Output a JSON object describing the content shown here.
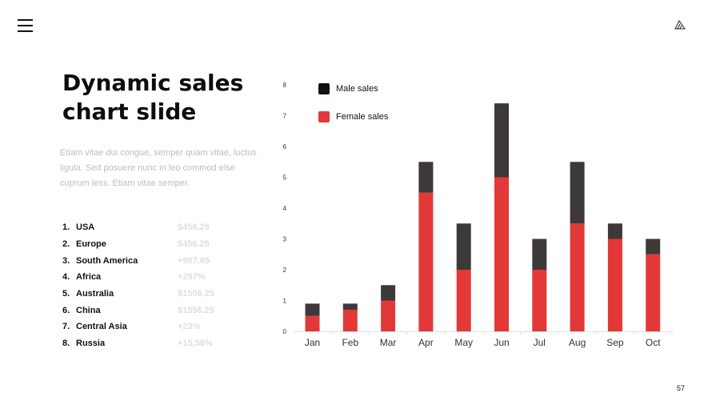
{
  "slide": {
    "title": "Dynamic sales chart slide",
    "description": "Etiam vitae dui congue, semper quam vitae, luctus ligula. Sed posuere nunc in leo commod else cuprum less. Etiam vitae semper.",
    "page_number": "57"
  },
  "icons": {
    "menu": "hamburger-menu-icon",
    "logo": "logo-mark-icon"
  },
  "ranking": [
    {
      "num": "1.",
      "name": "USA",
      "value": "$456.25"
    },
    {
      "num": "2.",
      "name": "Europe",
      "value": "$456.25"
    },
    {
      "num": "3.",
      "name": "South America",
      "value": "+987.65"
    },
    {
      "num": "4.",
      "name": "Africa",
      "value": "+297%"
    },
    {
      "num": "5.",
      "name": "Australia",
      "value": "$1556.25"
    },
    {
      "num": "6.",
      "name": "China",
      "value": "$1556.25"
    },
    {
      "num": "7.",
      "name": "Central Asia",
      "value": "+23%"
    },
    {
      "num": "8.",
      "name": "Russia",
      "value": "+15,56%"
    }
  ],
  "colors": {
    "male": "#3d3938",
    "female": "#e33838",
    "axis": "#e0e0e0"
  },
  "chart_data": {
    "type": "bar",
    "stacked": true,
    "categories": [
      "Jan",
      "Feb",
      "Mar",
      "Apr",
      "May",
      "Jun",
      "Jul",
      "Aug",
      "Sep",
      "Oct"
    ],
    "series": [
      {
        "name": "Female sales",
        "values": [
          0.5,
          0.7,
          1.0,
          4.5,
          2.0,
          5.0,
          2.0,
          3.5,
          3.0,
          2.5
        ]
      },
      {
        "name": "Male sales",
        "values": [
          0.4,
          0.2,
          0.5,
          1.0,
          1.5,
          2.4,
          1.0,
          2.0,
          0.5,
          0.5
        ]
      }
    ],
    "ylim": [
      0,
      8
    ],
    "yticks": [
      "0",
      "1",
      "2",
      "3",
      "4",
      "5",
      "6",
      "7",
      "8"
    ],
    "legend": [
      "Male sales",
      "Female sales"
    ],
    "legend_position": "top-left",
    "grid": false
  }
}
